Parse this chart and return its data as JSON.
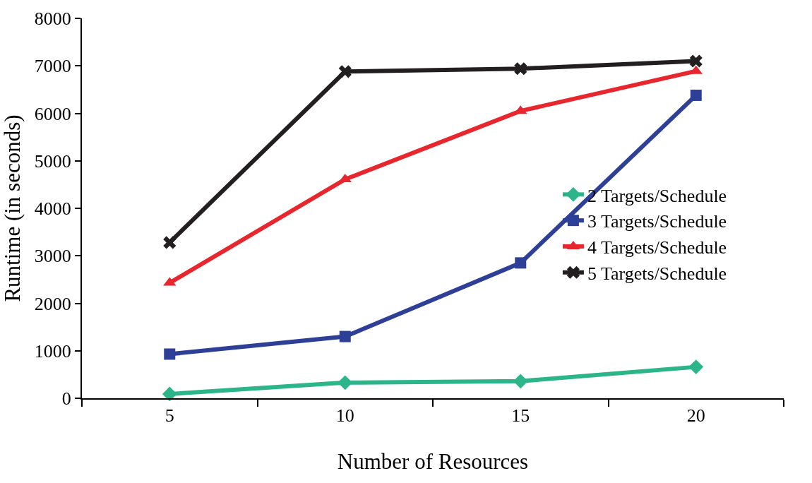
{
  "chart_data": {
    "type": "line",
    "xlabel": "Number of Resources",
    "ylabel": "Runtime (in seconds)",
    "categories": [
      "5",
      "10",
      "15",
      "20"
    ],
    "ylim": [
      0,
      8000
    ],
    "yticks": [
      0,
      1000,
      2000,
      3000,
      4000,
      5000,
      6000,
      7000,
      8000
    ],
    "legend": "right",
    "line_style": "solid",
    "series": [
      {
        "name": "2 Targets/Schedule",
        "color": "#2db58a",
        "marker": "diamond",
        "values": [
          90,
          330,
          360,
          660
        ]
      },
      {
        "name": "3 Targets/Schedule",
        "color": "#2e3f97",
        "marker": "square",
        "values": [
          930,
          1300,
          2850,
          6380
        ]
      },
      {
        "name": "4 Targets/Schedule",
        "color": "#e8262d",
        "marker": "triangle",
        "values": [
          2430,
          4610,
          6050,
          6890
        ]
      },
      {
        "name": "5 Targets/Schedule",
        "color": "#231f20",
        "marker": "cross",
        "values": [
          3280,
          6880,
          6940,
          7100
        ]
      }
    ]
  }
}
